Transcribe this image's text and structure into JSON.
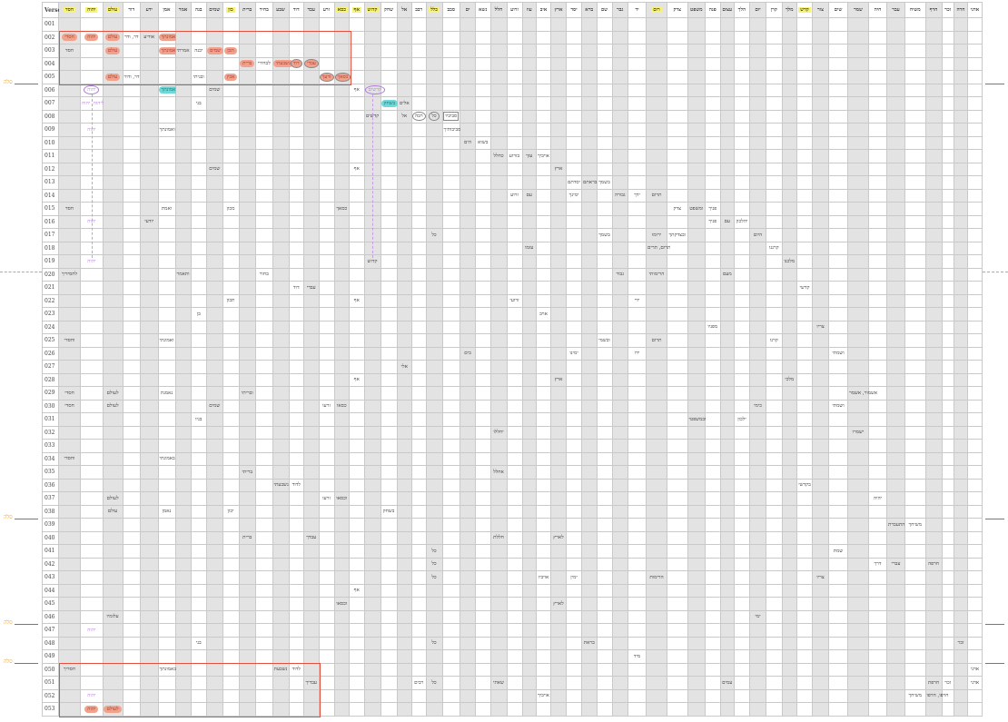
{
  "verse_header": "Verse",
  "margin_label": "סלה",
  "selah_after_verses": [
    "005",
    "038",
    "046",
    "049"
  ],
  "colors": {
    "pill": "#f1a28c",
    "teal": "#6fd8d8",
    "purple": "#b07ad8",
    "highlight": "#f7f27a",
    "box": "#e0503c"
  },
  "columns": [
    {
      "label": "חסד",
      "highlight": true
    },
    {
      "label": "יהוה",
      "highlight": true
    },
    {
      "label": "עולם",
      "highlight": true
    },
    {
      "label": "דור"
    },
    {
      "label": "ידע"
    },
    {
      "label": "אמן"
    },
    {
      "label": "אמר"
    },
    {
      "label": "בנה"
    },
    {
      "label": "שמים"
    },
    {
      "label": "כון",
      "highlight": true
    },
    {
      "label": "ברית"
    },
    {
      "label": "בחיר"
    },
    {
      "label": "שבע"
    },
    {
      "label": "דוד"
    },
    {
      "label": "עבד"
    },
    {
      "label": "זרע"
    },
    {
      "label": "כסא",
      "highlight": true
    },
    {
      "label": "אף",
      "highlight": true
    },
    {
      "label": "קדוש",
      "highlight": true
    },
    {
      "label": "שחק"
    },
    {
      "label": "אל"
    },
    {
      "label": "רבב"
    },
    {
      "label": "כלל",
      "highlight": true
    },
    {
      "label": "סבב"
    },
    {
      "label": "ים"
    },
    {
      "label": "נשא"
    },
    {
      "label": "חלל"
    },
    {
      "label": "זרוע"
    },
    {
      "label": "עוז"
    },
    {
      "label": "איב"
    },
    {
      "label": "ארץ"
    },
    {
      "label": "יסד"
    },
    {
      "label": "ברא"
    },
    {
      "label": "שם"
    },
    {
      "label": "גבר"
    },
    {
      "label": "יד"
    },
    {
      "label": "רום",
      "highlight": true
    },
    {
      "label": "צדק"
    },
    {
      "label": "משפט"
    },
    {
      "label": "פנה"
    },
    {
      "label": "עצום"
    },
    {
      "label": "הלך"
    },
    {
      "label": "יום"
    },
    {
      "label": "קרן"
    },
    {
      "label": "מלך"
    },
    {
      "label": "קדש",
      "highlight": true
    },
    {
      "label": "צור"
    },
    {
      "label": "שים"
    },
    {
      "label": "שמר"
    },
    {
      "label": "חיה"
    },
    {
      "label": "עבר"
    },
    {
      "label": "משיח"
    },
    {
      "label": "חרף"
    },
    {
      "label": "זכר"
    },
    {
      "label": "חרה"
    },
    {
      "label": "אדני"
    }
  ],
  "rows": [
    {
      "verse": "001",
      "cells": []
    },
    {
      "verse": "002",
      "cells": [
        {
          "col": 1,
          "text": "חסדי",
          "style": "pill"
        },
        {
          "col": 2,
          "text": "יהוה",
          "style": "pill"
        },
        {
          "col": 3,
          "text": "עולם",
          "style": "pill"
        },
        {
          "col": 4,
          "text": "דר, ודר"
        },
        {
          "col": 5,
          "text": "אודיע"
        },
        {
          "col": 6,
          "text": "אמונתך",
          "style": "pill"
        }
      ]
    },
    {
      "verse": "003",
      "cells": [
        {
          "col": 1,
          "text": "חסד"
        },
        {
          "col": 3,
          "text": "עולם",
          "style": "pill"
        },
        {
          "col": 6,
          "text": "אמונתך",
          "style": "pill"
        },
        {
          "col": 7,
          "text": "אמרתי"
        },
        {
          "col": 8,
          "text": "יבנה"
        },
        {
          "col": 9,
          "text": "שמים",
          "style": "pill"
        },
        {
          "col": 10,
          "text": "תכן",
          "style": "pill"
        }
      ]
    },
    {
      "verse": "004",
      "cells": [
        {
          "col": 11,
          "text": "ברית",
          "style": "pill"
        },
        {
          "col": 12,
          "text": "לבחירי"
        },
        {
          "col": 13,
          "text": "נשבעתי",
          "style": "pill"
        },
        {
          "col": 14,
          "text": "דוד",
          "style": "pill circled"
        },
        {
          "col": 15,
          "text": "עבדי",
          "style": "pill circled"
        }
      ]
    },
    {
      "verse": "005",
      "cells": [
        {
          "col": 3,
          "text": "עולם",
          "style": "pill"
        },
        {
          "col": 4,
          "text": "דר, ודור"
        },
        {
          "col": 8,
          "text": "ובניתי"
        },
        {
          "col": 10,
          "text": "אכין",
          "style": "pill"
        },
        {
          "col": 16,
          "text": "זרעך",
          "style": "pill circled"
        },
        {
          "col": 17,
          "text": "כסאך",
          "style": "pill circled"
        }
      ]
    },
    {
      "verse": "006",
      "cells": [
        {
          "col": 2,
          "text": "יהוה",
          "style": "purple-circle"
        },
        {
          "col": 6,
          "text": "אמונתך",
          "style": "teal"
        },
        {
          "col": 9,
          "text": "שמים"
        },
        {
          "col": 18,
          "text": "אף"
        },
        {
          "col": 19,
          "text": "קדשים",
          "style": "purple-circle"
        }
      ]
    },
    {
      "verse": "007",
      "cells": [
        {
          "col": 2,
          "text": "ליהוה, יהוה",
          "style": "purple"
        },
        {
          "col": 8,
          "text": "בני"
        },
        {
          "col": 20,
          "text": "בשחק",
          "style": "teal"
        },
        {
          "col": 21,
          "text": "אלים"
        }
      ]
    },
    {
      "verse": "008",
      "cells": [
        {
          "col": 19,
          "text": "קדשים"
        },
        {
          "col": 21,
          "text": "אל"
        },
        {
          "col": 22,
          "text": "רבה",
          "style": "circled"
        },
        {
          "col": 23,
          "text": "כל",
          "style": "circled"
        },
        {
          "col": 24,
          "text": "סביביו",
          "style": "boxed"
        }
      ]
    },
    {
      "verse": "009",
      "cells": [
        {
          "col": 2,
          "text": "יהוה",
          "style": "purple"
        },
        {
          "col": 6,
          "text": "ואמונתך"
        },
        {
          "col": 24,
          "text": "סביבותיך"
        }
      ]
    },
    {
      "verse": "010",
      "cells": [
        {
          "col": 25,
          "text": "הים"
        },
        {
          "col": 26,
          "text": "בשוא"
        }
      ]
    },
    {
      "verse": "011",
      "cells": [
        {
          "col": 27,
          "text": "כחלל"
        },
        {
          "col": 28,
          "text": "בזרוע"
        },
        {
          "col": 29,
          "text": "עזך"
        },
        {
          "col": 30,
          "text": "אויביך"
        }
      ]
    },
    {
      "verse": "012",
      "cells": [
        {
          "col": 9,
          "text": "שמים"
        },
        {
          "col": 18,
          "text": "אף"
        },
        {
          "col": 31,
          "text": "ארץ"
        }
      ]
    },
    {
      "verse": "013",
      "cells": [
        {
          "col": 32,
          "text": "יסדתם"
        },
        {
          "col": 33,
          "text": "בראתם"
        },
        {
          "col": 34,
          "text": "בשמך"
        }
      ]
    },
    {
      "verse": "014",
      "cells": [
        {
          "col": 28,
          "text": "זרוע"
        },
        {
          "col": 29,
          "text": "עם"
        },
        {
          "col": 32,
          "text": "ימינך"
        },
        {
          "col": 35,
          "text": "גבורה"
        },
        {
          "col": 36,
          "text": "ידך"
        },
        {
          "col": 37,
          "text": "תרום"
        }
      ]
    },
    {
      "verse": "015",
      "cells": [
        {
          "col": 1,
          "text": "חסד"
        },
        {
          "col": 6,
          "text": "ואמת"
        },
        {
          "col": 10,
          "text": "מכון"
        },
        {
          "col": 17,
          "text": "כסאך"
        },
        {
          "col": 38,
          "text": "צדק"
        },
        {
          "col": 39,
          "text": "ומשפט"
        },
        {
          "col": 40,
          "text": "פניך"
        }
      ]
    },
    {
      "verse": "016",
      "cells": [
        {
          "col": 2,
          "text": "יהוה",
          "style": "purple"
        },
        {
          "col": 5,
          "text": "יודעי"
        },
        {
          "col": 40,
          "text": "פניך"
        },
        {
          "col": 41,
          "text": "עם"
        },
        {
          "col": 42,
          "text": "יהלכון"
        }
      ]
    },
    {
      "verse": "017",
      "cells": [
        {
          "col": 23,
          "text": "כל"
        },
        {
          "col": 34,
          "text": "בשמך"
        },
        {
          "col": 37,
          "text": "ירומו"
        },
        {
          "col": 38,
          "text": "ובצדקתך"
        },
        {
          "col": 43,
          "text": "היום"
        }
      ]
    },
    {
      "verse": "018",
      "cells": [
        {
          "col": 29,
          "text": "עזמו"
        },
        {
          "col": 37,
          "text": "תרום, תרים"
        },
        {
          "col": 44,
          "text": "קרננו"
        }
      ]
    },
    {
      "verse": "019",
      "cells": [
        {
          "col": 2,
          "text": "יהוה",
          "style": "purple"
        },
        {
          "col": 19,
          "text": "קדוש"
        },
        {
          "col": 45,
          "text": "מלכנו"
        }
      ]
    },
    {
      "verse": "020",
      "cells": [
        {
          "col": 1,
          "text": "לחסידיך"
        },
        {
          "col": 7,
          "text": "ותאמר"
        },
        {
          "col": 12,
          "text": "בחור"
        },
        {
          "col": 35,
          "text": "גבור"
        },
        {
          "col": 37,
          "text": "הרימותי"
        },
        {
          "col": 41,
          "text": "מעם"
        }
      ]
    },
    {
      "verse": "021",
      "cells": [
        {
          "col": 14,
          "text": "דוד"
        },
        {
          "col": 15,
          "text": "עבדי"
        },
        {
          "col": 46,
          "text": "קדשי"
        }
      ]
    },
    {
      "verse": "022",
      "cells": [
        {
          "col": 10,
          "text": "תכון"
        },
        {
          "col": 18,
          "text": "אף"
        },
        {
          "col": 28,
          "text": "זרועי"
        },
        {
          "col": 36,
          "text": "ידי"
        }
      ]
    },
    {
      "verse": "023",
      "cells": [
        {
          "col": 8,
          "text": "בן"
        },
        {
          "col": 30,
          "text": "אויב"
        }
      ]
    },
    {
      "verse": "024",
      "cells": [
        {
          "col": 40,
          "text": "מפניו"
        },
        {
          "col": 47,
          "text": "צריו"
        }
      ]
    },
    {
      "verse": "025",
      "cells": [
        {
          "col": 1,
          "text": "וחסדי"
        },
        {
          "col": 6,
          "text": "ואמונתי"
        },
        {
          "col": 34,
          "text": "ובשמי"
        },
        {
          "col": 37,
          "text": "תרום"
        },
        {
          "col": 44,
          "text": "קרנו"
        }
      ]
    },
    {
      "verse": "026",
      "cells": [
        {
          "col": 25,
          "text": "בים"
        },
        {
          "col": 32,
          "text": "ימינו"
        },
        {
          "col": 36,
          "text": "ידו"
        },
        {
          "col": 48,
          "text": "ושמתי"
        }
      ]
    },
    {
      "verse": "027",
      "cells": [
        {
          "col": 21,
          "text": "אלי"
        }
      ]
    },
    {
      "verse": "028",
      "cells": [
        {
          "col": 18,
          "text": "אף"
        },
        {
          "col": 31,
          "text": "ארץ"
        },
        {
          "col": 45,
          "text": "מלכי"
        }
      ]
    },
    {
      "verse": "029",
      "cells": [
        {
          "col": 1,
          "text": "חסדי"
        },
        {
          "col": 3,
          "text": "לעולם"
        },
        {
          "col": 6,
          "text": "נאמנת"
        },
        {
          "col": 11,
          "text": "ובריתי"
        },
        {
          "col": 49,
          "text": "אשמור, אשמר"
        }
      ]
    },
    {
      "verse": "030",
      "cells": [
        {
          "col": 1,
          "text": "חסדי"
        },
        {
          "col": 3,
          "text": "לעולם"
        },
        {
          "col": 9,
          "text": "שמים"
        },
        {
          "col": 16,
          "text": "זרעו"
        },
        {
          "col": 17,
          "text": "כסאו"
        },
        {
          "col": 43,
          "text": "כימי"
        },
        {
          "col": 48,
          "text": "ושמתי"
        }
      ]
    },
    {
      "verse": "031",
      "cells": [
        {
          "col": 8,
          "text": "בניו"
        },
        {
          "col": 39,
          "text": "ובמשפטי"
        },
        {
          "col": 42,
          "text": "ילכון"
        }
      ]
    },
    {
      "verse": "032",
      "cells": [
        {
          "col": 27,
          "text": "יחללו"
        },
        {
          "col": 49,
          "text": "ישמרו"
        }
      ]
    },
    {
      "verse": "033",
      "cells": []
    },
    {
      "verse": "034",
      "cells": [
        {
          "col": 1,
          "text": "וחסדי"
        },
        {
          "col": 6,
          "text": "באמונתי"
        }
      ]
    },
    {
      "verse": "035",
      "cells": [
        {
          "col": 11,
          "text": "בריתי"
        },
        {
          "col": 27,
          "text": "אחלל"
        }
      ]
    },
    {
      "verse": "036",
      "cells": [
        {
          "col": 13,
          "text": "נשבעתי"
        },
        {
          "col": 14,
          "text": "לדוד"
        },
        {
          "col": 46,
          "text": "בקדשי"
        }
      ]
    },
    {
      "verse": "037",
      "cells": [
        {
          "col": 3,
          "text": "לעולם"
        },
        {
          "col": 16,
          "text": "זרעו"
        },
        {
          "col": 17,
          "text": "וכסאו"
        },
        {
          "col": 50,
          "text": "יהיה"
        }
      ]
    },
    {
      "verse": "038",
      "cells": [
        {
          "col": 3,
          "text": "עולם"
        },
        {
          "col": 6,
          "text": "נאמן"
        },
        {
          "col": 10,
          "text": "יכון"
        },
        {
          "col": 20,
          "text": "בשחק"
        }
      ]
    },
    {
      "verse": "039",
      "cells": [
        {
          "col": 51,
          "text": "התעברת"
        },
        {
          "col": 52,
          "text": "משיחך"
        }
      ]
    },
    {
      "verse": "040",
      "cells": [
        {
          "col": 11,
          "text": "ברית"
        },
        {
          "col": 15,
          "text": "עבדך"
        },
        {
          "col": 27,
          "text": "חללת"
        },
        {
          "col": 31,
          "text": "לארץ"
        }
      ]
    },
    {
      "verse": "041",
      "cells": [
        {
          "col": 23,
          "text": "כל"
        },
        {
          "col": 48,
          "text": "שמת"
        }
      ]
    },
    {
      "verse": "042",
      "cells": [
        {
          "col": 23,
          "text": "כל"
        },
        {
          "col": 50,
          "text": "דרך"
        },
        {
          "col": 51,
          "text": "עברי"
        },
        {
          "col": 53,
          "text": "חרפה"
        }
      ]
    },
    {
      "verse": "043",
      "cells": [
        {
          "col": 23,
          "text": "כל"
        },
        {
          "col": 30,
          "text": "אויביו"
        },
        {
          "col": 32,
          "text": "ימין"
        },
        {
          "col": 37,
          "text": "הרימות"
        },
        {
          "col": 47,
          "text": "צריו"
        }
      ]
    },
    {
      "verse": "044",
      "cells": [
        {
          "col": 18,
          "text": "אף"
        }
      ]
    },
    {
      "verse": "045",
      "cells": [
        {
          "col": 17,
          "text": "וכסאו"
        },
        {
          "col": 31,
          "text": "לארץ"
        }
      ]
    },
    {
      "verse": "046",
      "cells": [
        {
          "col": 3,
          "text": "עלומיו"
        },
        {
          "col": 43,
          "text": "ימי"
        }
      ]
    },
    {
      "verse": "047",
      "cells": [
        {
          "col": 2,
          "text": "יהוה",
          "style": "purple"
        }
      ]
    },
    {
      "verse": "048",
      "cells": [
        {
          "col": 8,
          "text": "בני"
        },
        {
          "col": 23,
          "text": "כל"
        },
        {
          "col": 33,
          "text": "בראת"
        },
        {
          "col": 55,
          "text": "זכר"
        }
      ]
    },
    {
      "verse": "049",
      "cells": [
        {
          "col": 36,
          "text": "מיד"
        }
      ]
    },
    {
      "verse": "050",
      "cells": [
        {
          "col": 1,
          "text": "חסדיך"
        },
        {
          "col": 6,
          "text": "באמונתך"
        },
        {
          "col": 13,
          "text": "נשבעת"
        },
        {
          "col": 14,
          "text": "לדוד"
        },
        {
          "col": 56,
          "text": "אדני"
        }
      ]
    },
    {
      "verse": "051",
      "cells": [
        {
          "col": 15,
          "text": "עבדיך"
        },
        {
          "col": 22,
          "text": "רבים"
        },
        {
          "col": 23,
          "text": "כל"
        },
        {
          "col": 27,
          "text": "שאתי"
        },
        {
          "col": 41,
          "text": "עמים"
        },
        {
          "col": 53,
          "text": "חרפת"
        },
        {
          "col": 54,
          "text": "זכר"
        },
        {
          "col": 56,
          "text": "אדני"
        }
      ]
    },
    {
      "verse": "052",
      "cells": [
        {
          "col": 2,
          "text": "יהוה",
          "style": "purple"
        },
        {
          "col": 30,
          "text": "אויביך"
        },
        {
          "col": 52,
          "text": "משיחך"
        },
        {
          "col": 53,
          "text": "חרפו, חרפו"
        }
      ]
    },
    {
      "verse": "053",
      "cells": [
        {
          "col": 2,
          "text": "יהוה",
          "style": "pill"
        },
        {
          "col": 3,
          "text": "לעולם",
          "style": "pill"
        }
      ]
    }
  ],
  "highlight_boxes": [
    {
      "from_verse": "002",
      "to_verse": "005",
      "from_col": 1,
      "to_col": 17
    },
    {
      "from_verse": "050",
      "to_verse": "053",
      "from_col": 1,
      "to_col": 15
    }
  ],
  "connector_lines": [
    {
      "col": 2,
      "from_verse": "006",
      "to_verse": "019"
    },
    {
      "col": 19,
      "from_verse": "006",
      "to_verse": "019"
    }
  ],
  "section_break_after_verse": "019"
}
